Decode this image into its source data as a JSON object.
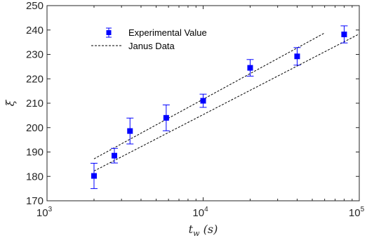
{
  "chart_data": {
    "type": "scatter",
    "title": "",
    "xlabel": "t_w (s)",
    "ylabel": "ξ",
    "xscale": "log",
    "xlim": [
      1000,
      100000
    ],
    "ylim": [
      170,
      250
    ],
    "x_ticks": [
      {
        "value": 1000,
        "base": "10",
        "exp": "3"
      },
      {
        "value": 10000,
        "base": "10",
        "exp": "4"
      },
      {
        "value": 100000,
        "base": "10",
        "exp": "5"
      }
    ],
    "y_ticks": [
      170,
      180,
      190,
      200,
      210,
      220,
      230,
      240,
      250
    ],
    "grid": false,
    "legend_position": "top-left",
    "series": [
      {
        "name": "Experimental Value",
        "kind": "markers-with-errorbars",
        "color": "#0000ff",
        "points": [
          {
            "x": 2000,
            "y": 180.2,
            "err": 5.2
          },
          {
            "x": 2700,
            "y": 188.5,
            "err": 3.0
          },
          {
            "x": 3400,
            "y": 198.6,
            "err": 5.3
          },
          {
            "x": 5800,
            "y": 204.0,
            "err": 5.3
          },
          {
            "x": 10000,
            "y": 211.0,
            "err": 2.7
          },
          {
            "x": 20000,
            "y": 224.5,
            "err": 3.4
          },
          {
            "x": 40000,
            "y": 229.2,
            "err": 3.6
          },
          {
            "x": 80000,
            "y": 238.2,
            "err": 3.5
          }
        ]
      },
      {
        "name": "Janus Data",
        "kind": "dashed-lines",
        "color": "#000000",
        "lines": [
          [
            {
              "x": 2000,
              "y": 187.2
            },
            {
              "x": 60000,
              "y": 238.8
            }
          ],
          [
            {
              "x": 2000,
              "y": 182.2
            },
            {
              "x": 100000,
              "y": 238.4
            }
          ]
        ]
      }
    ]
  }
}
